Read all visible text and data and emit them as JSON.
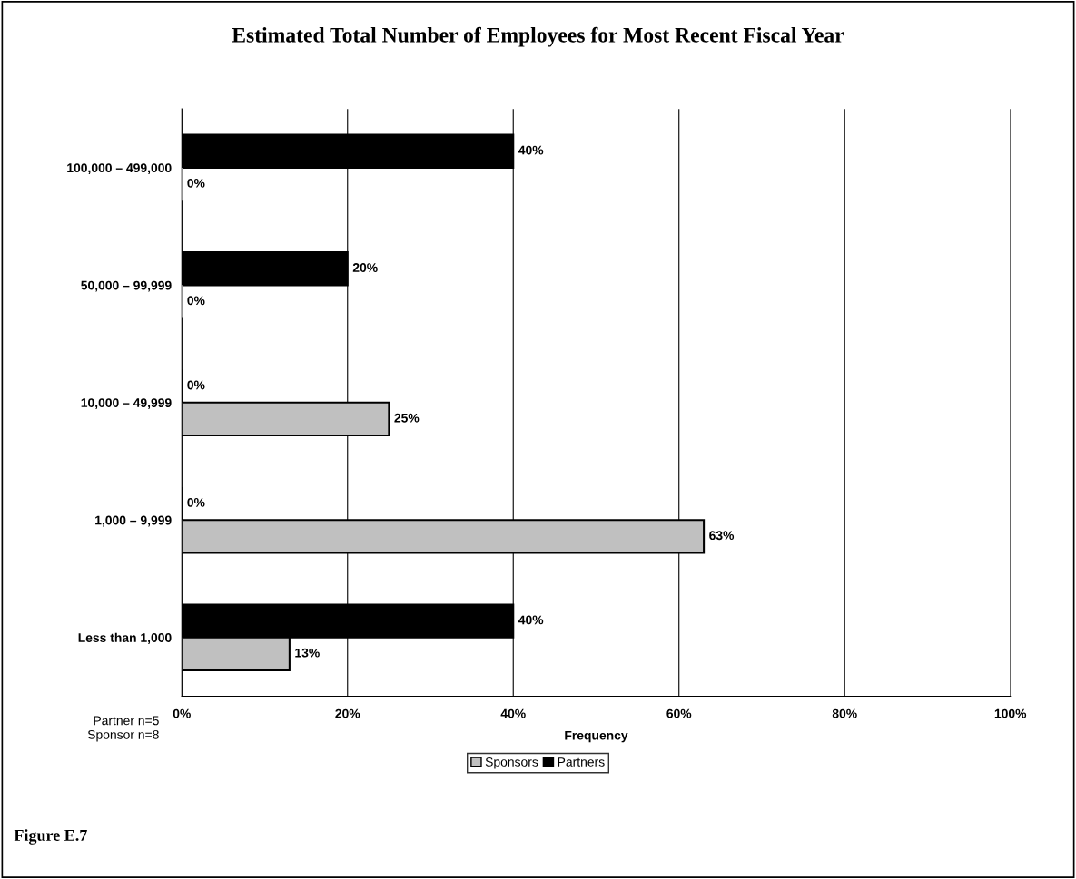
{
  "chart_data": {
    "type": "bar",
    "orientation": "horizontal",
    "title": "Estimated Total Number of Employees for Most Recent Fiscal Year",
    "xlabel": "Frequency",
    "categories": [
      "100,000 – 499,000",
      "50,000 – 99,999",
      "10,000 – 49,999",
      "1,000 – 9,999",
      "Less than 1,000"
    ],
    "series": [
      {
        "name": "Partners",
        "color": "#000000",
        "values": [
          40,
          20,
          0,
          0,
          40
        ],
        "value_labels": [
          "40%",
          "20%",
          "0%",
          "0%",
          "40%"
        ]
      },
      {
        "name": "Sponsors",
        "color": "#c0c0c0",
        "values": [
          0,
          0,
          25,
          63,
          13
        ],
        "value_labels": [
          "0%",
          "0%",
          "25%",
          "63%",
          "13%"
        ]
      }
    ],
    "xlim": [
      0,
      100
    ],
    "xticks": [
      {
        "value": 0,
        "label": "0%"
      },
      {
        "value": 20,
        "label": "20%"
      },
      {
        "value": 40,
        "label": "40%"
      },
      {
        "value": 60,
        "label": "60%"
      },
      {
        "value": 80,
        "label": "80%"
      },
      {
        "value": 100,
        "label": "100%"
      }
    ],
    "grid": "x",
    "legend": "bottom",
    "annotations": [
      "Partner n=5",
      "Sponsor n=8",
      "Figure E.7"
    ]
  }
}
